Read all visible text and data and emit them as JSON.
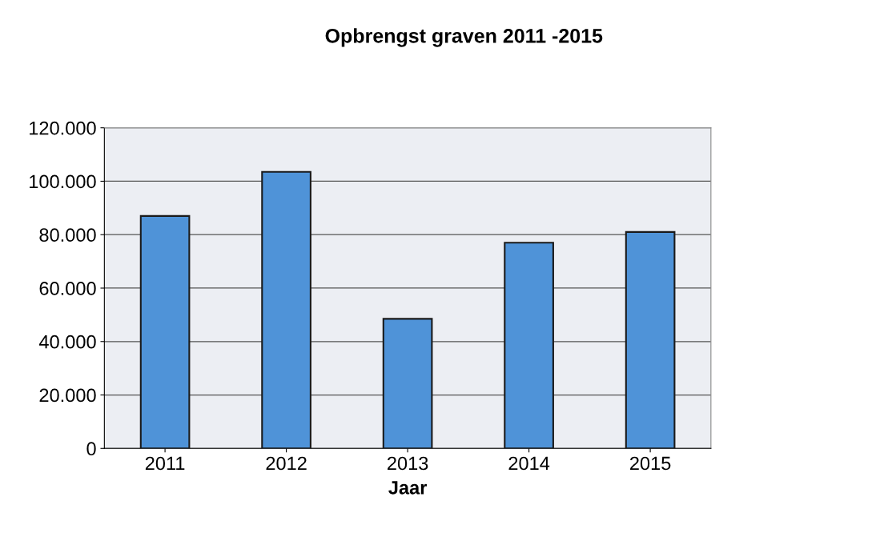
{
  "chart_data": {
    "type": "bar",
    "title": "Opbrengst graven 2011 -2015",
    "xlabel": "Jaar",
    "categories": [
      "2011",
      "2012",
      "2013",
      "2014",
      "2015"
    ],
    "values": [
      87000,
      103500,
      48500,
      77000,
      81000
    ],
    "color": "#4f93d8",
    "ylim": [
      0,
      120000
    ],
    "yticks": [
      {
        "value": 0,
        "label": "0"
      },
      {
        "value": 20000,
        "label": "20.000"
      },
      {
        "value": 40000,
        "label": "40.000"
      },
      {
        "value": 60000,
        "label": "60.000"
      },
      {
        "value": 80000,
        "label": "80.000"
      },
      {
        "value": 100000,
        "label": "100.000"
      },
      {
        "value": 120000,
        "label": "120.000"
      }
    ],
    "grid": "y",
    "legend": false
  }
}
